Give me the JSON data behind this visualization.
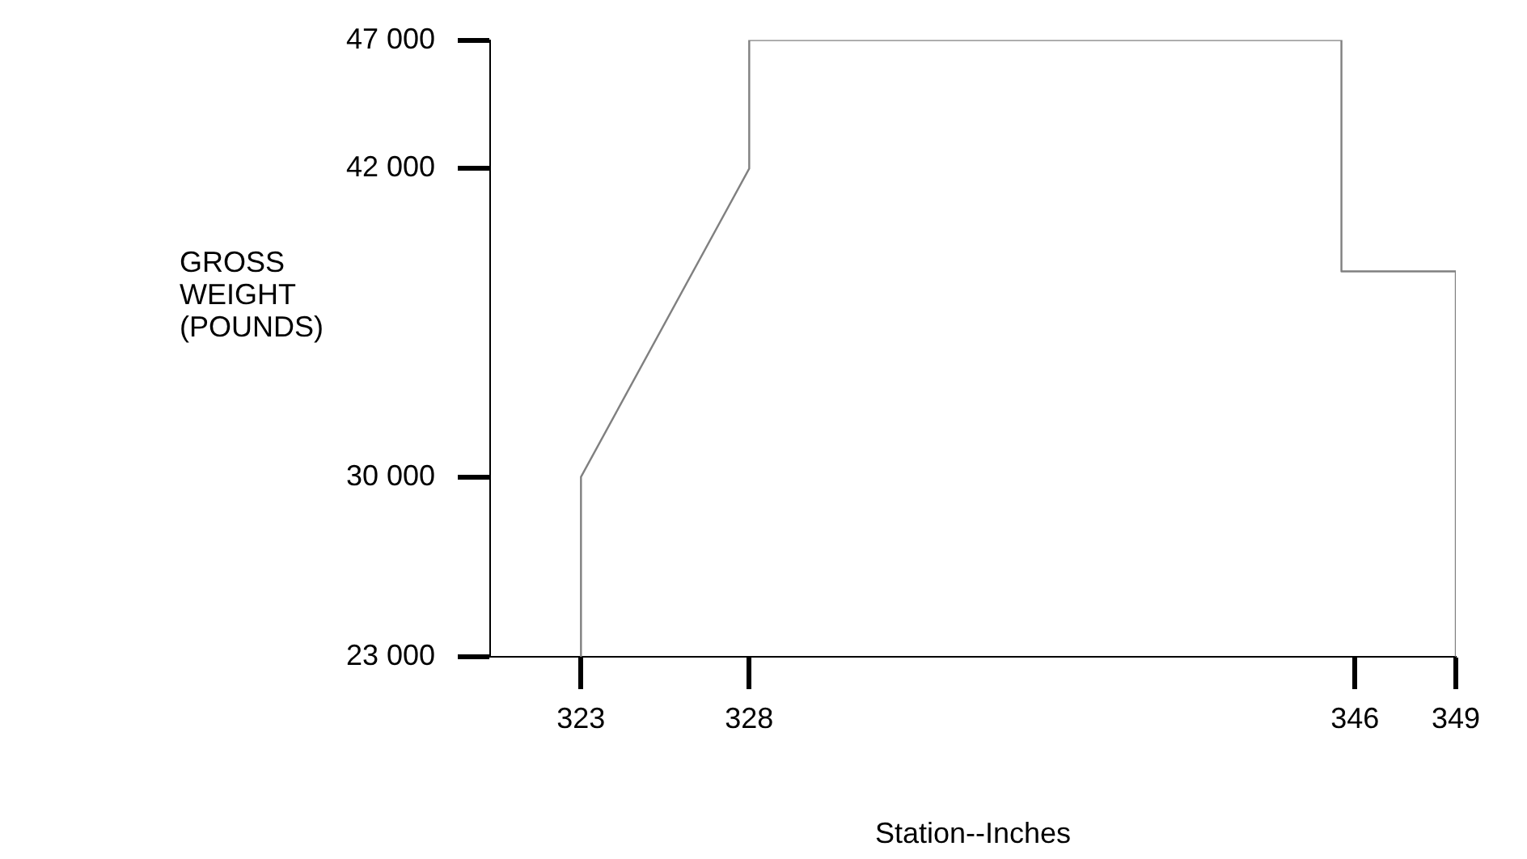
{
  "chart_data": {
    "type": "line",
    "xlabel": "Station--Inches",
    "ylabel": "GROSS\nWEIGHT\n(POUNDS)",
    "x": [
      323,
      323,
      328,
      328,
      345.6,
      345.6,
      349,
      349
    ],
    "series": [
      {
        "color": "#808080",
        "values": [
          23000,
          30000,
          42000,
          47000,
          47000,
          38000,
          38000,
          23000
        ]
      }
    ],
    "xlim": [
      320.3,
      349
    ],
    "xticks": [
      323,
      328,
      346,
      349
    ],
    "ylim": [
      23000,
      47000
    ],
    "yticks": [
      {
        "value": 23000,
        "label": "23 000"
      },
      {
        "value": 30000,
        "label": "30 000"
      },
      {
        "value": 42000,
        "label": "42 000"
      },
      {
        "value": 47000,
        "label": "47 000"
      }
    ],
    "grid": false,
    "legend": false,
    "marker": "none",
    "line_style": "solid"
  }
}
